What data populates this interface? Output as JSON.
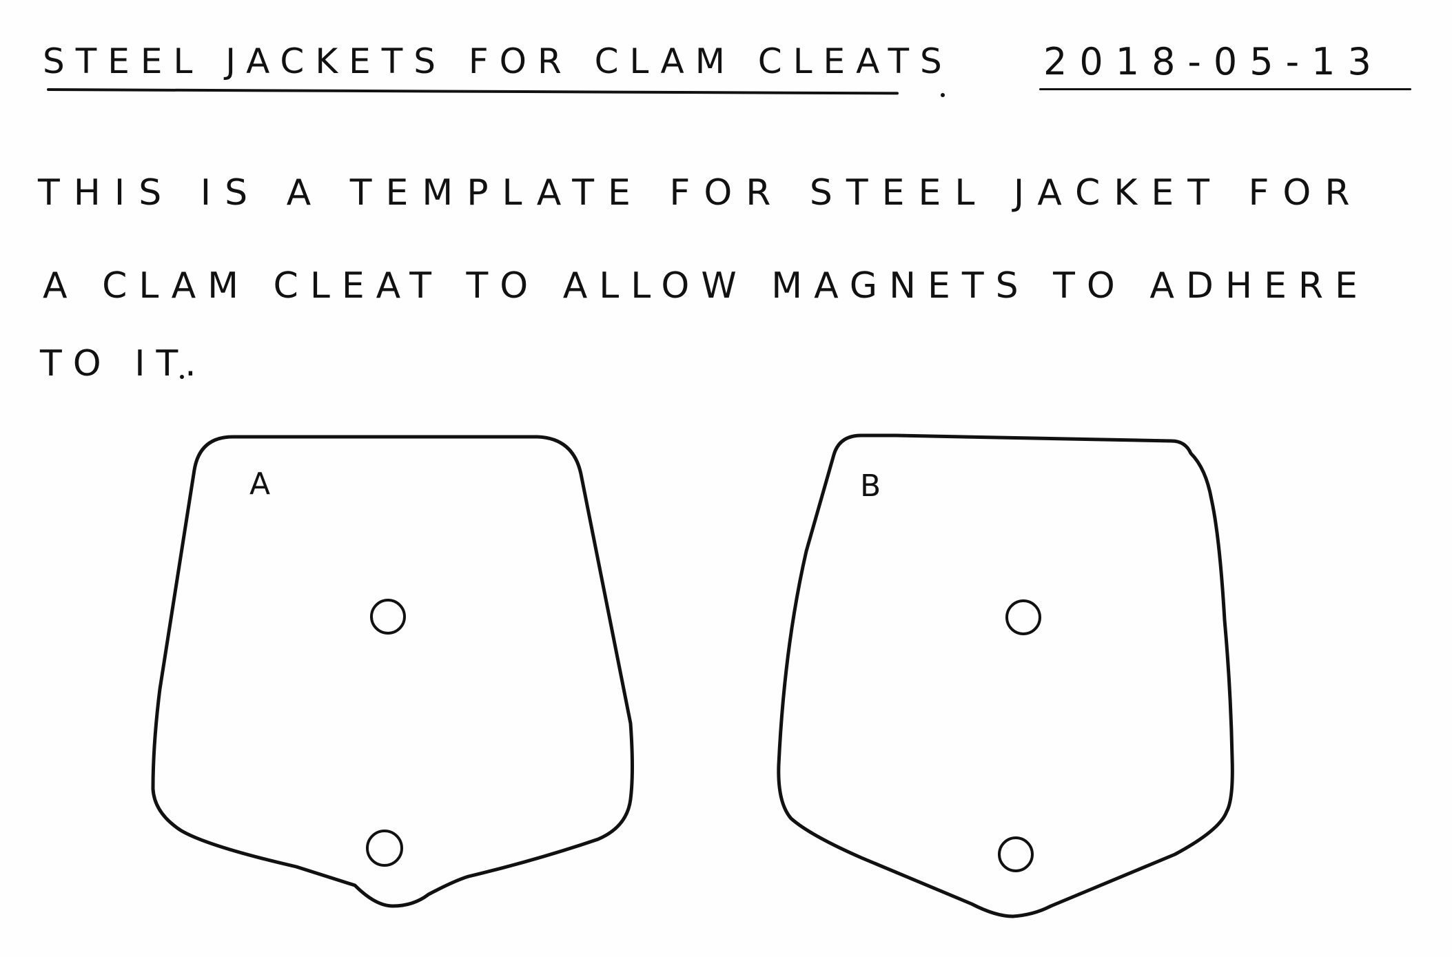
{
  "header": {
    "title": "STEEL JACKETS FOR CLAM CLEATS",
    "date": "2018-05-13"
  },
  "description": {
    "line1": "THIS IS A TEMPLATE FOR STEEL JACKET FOR",
    "line2": "A CLAM CLEAT TO ALLOW MAGNETS TO ADHERE",
    "line3": "TO IT."
  },
  "templates": [
    {
      "label": "A",
      "holes": 2
    },
    {
      "label": "B",
      "holes": 2
    }
  ],
  "colors": {
    "ink": "#111111",
    "paper": "#fefefe"
  }
}
